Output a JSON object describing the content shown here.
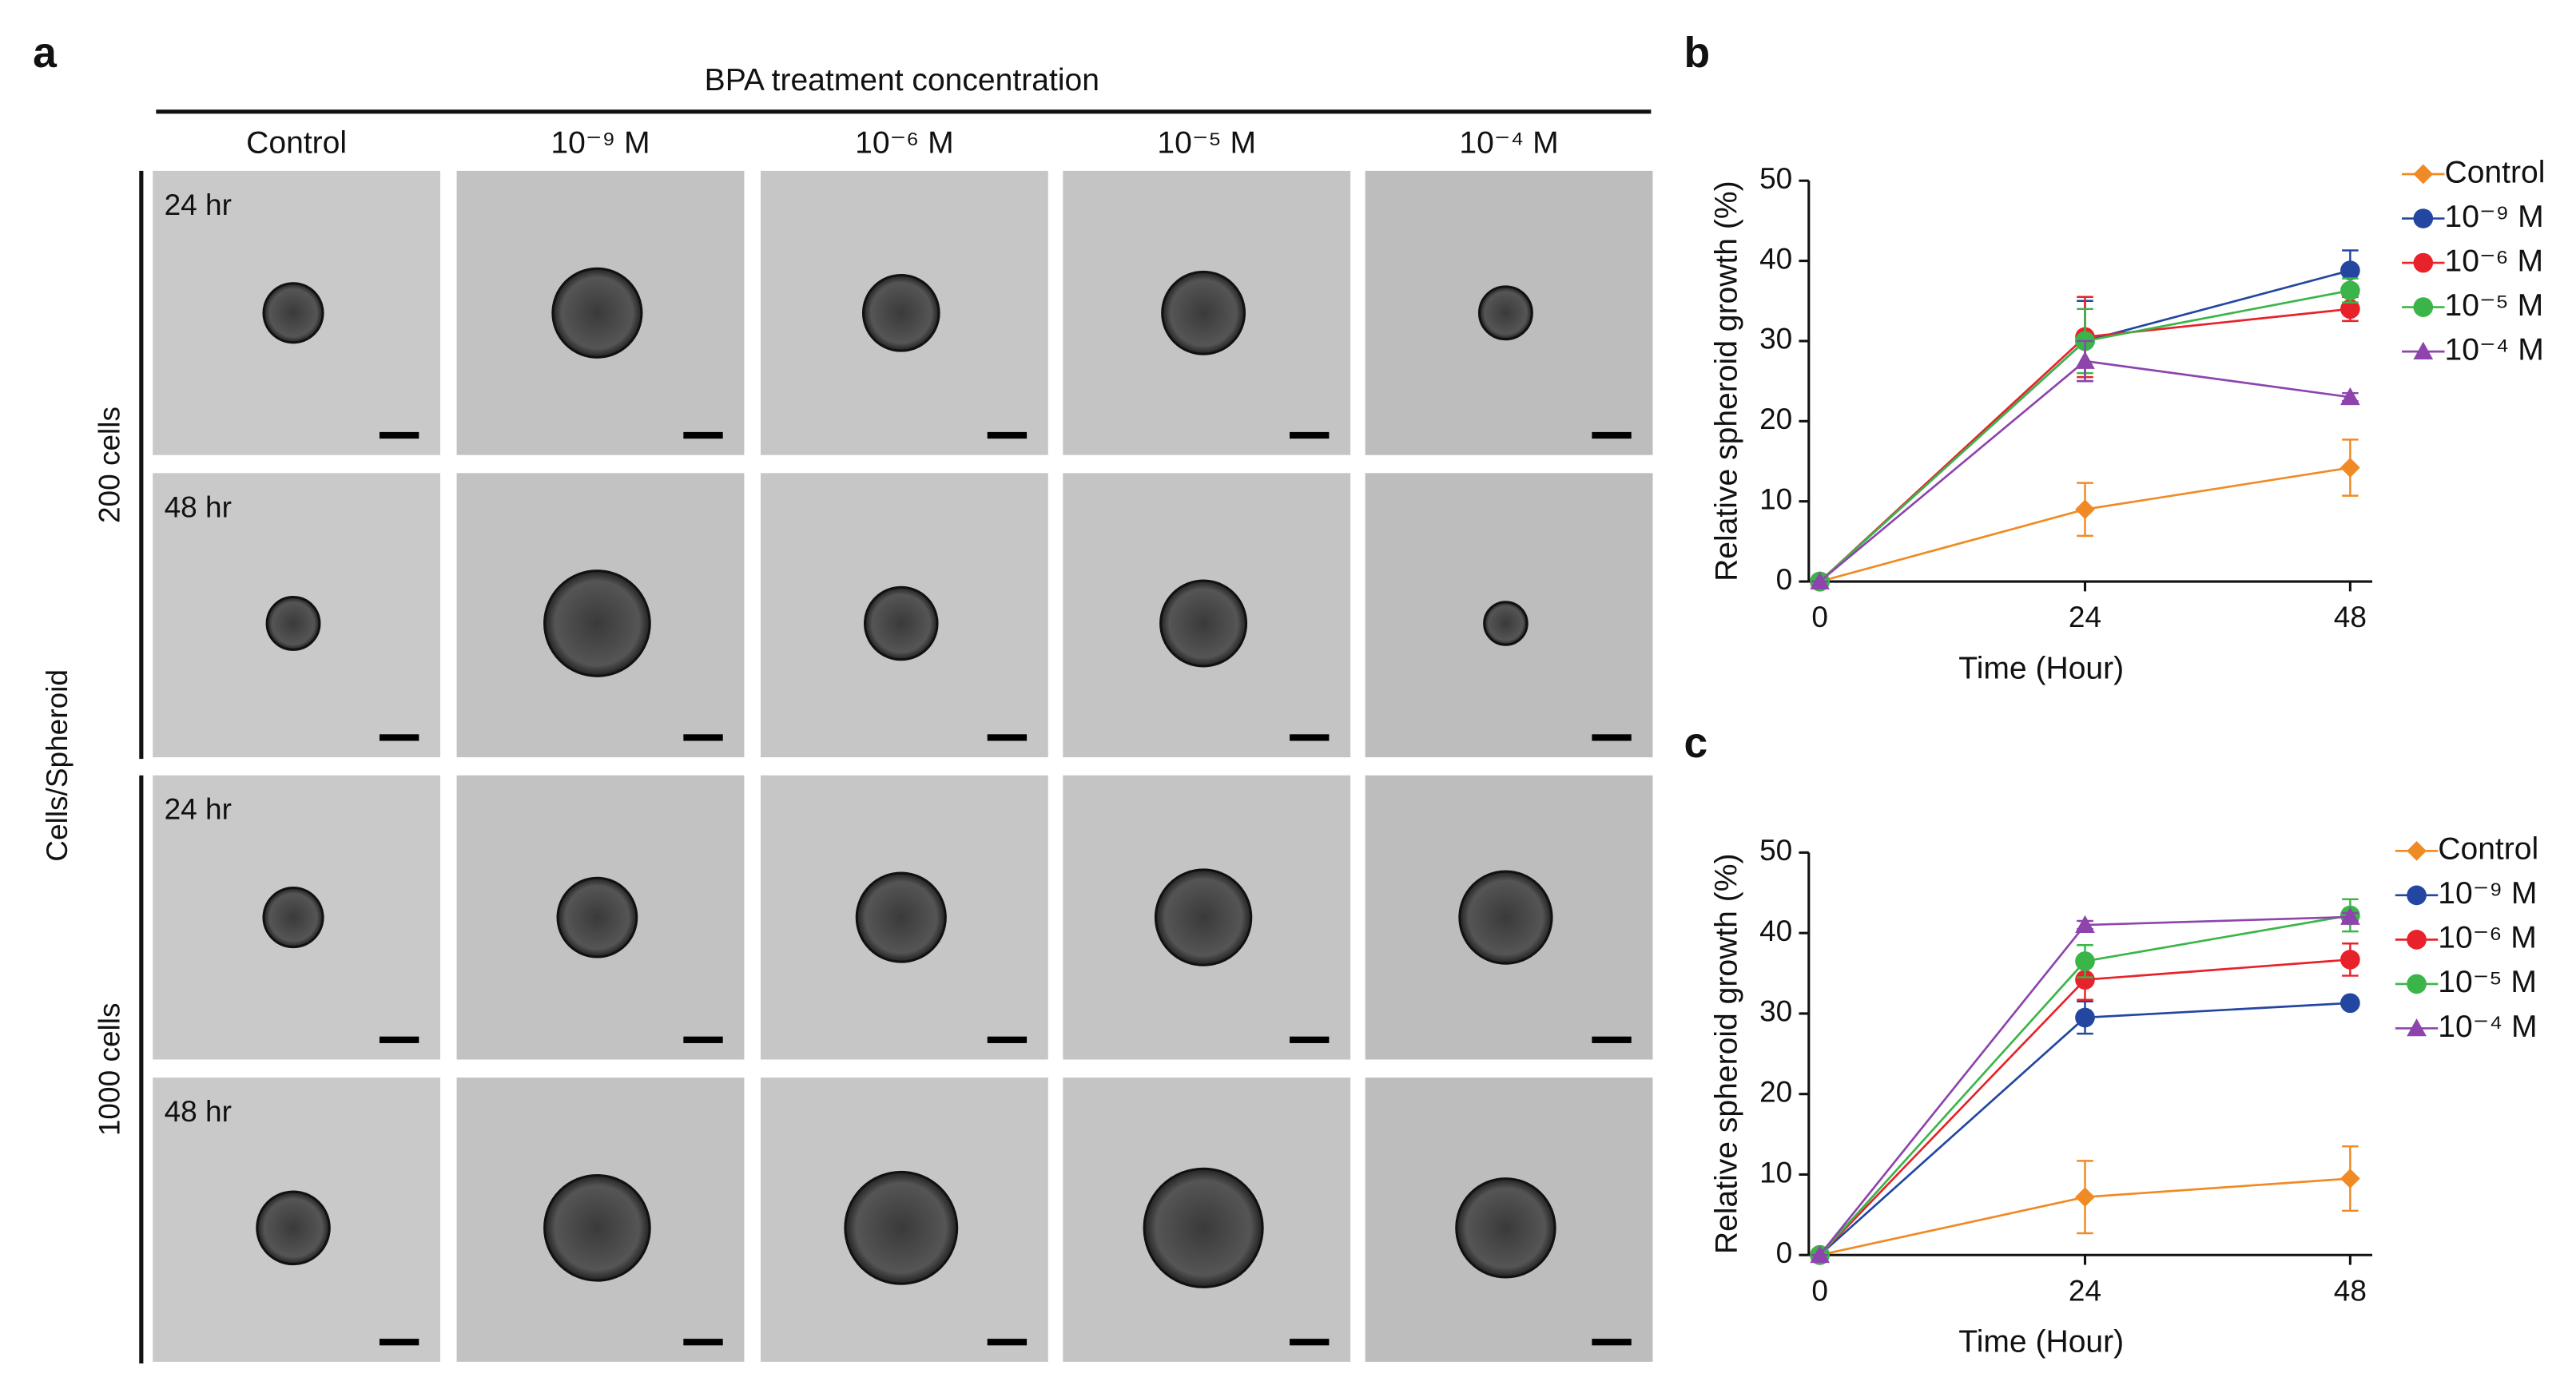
{
  "panel_a": {
    "label": "a",
    "title": "BPA treatment concentration",
    "columns": [
      "Control",
      "10⁻⁹ M",
      "10⁻⁶ M",
      "10⁻⁵ M",
      "10⁻⁴ M"
    ],
    "axis_label": "Cells/Spheroid",
    "groups": [
      "200 cells",
      "1000 cells"
    ],
    "row_labels": [
      "24 hr",
      "48 hr",
      "24 hr",
      "48 hr"
    ]
  },
  "chart_data": [
    {
      "type": "line",
      "label": "b",
      "ylabel": "Relative spheroid growth (%)",
      "xlabel": "Time (Hour)",
      "x": [
        0,
        24,
        48
      ],
      "xlim": [
        -1,
        50
      ],
      "xticks": [
        0,
        24,
        48
      ],
      "ylim": [
        0,
        50
      ],
      "yticks": [
        0,
        10,
        20,
        30,
        40,
        50
      ],
      "series": [
        {
          "name": "Control",
          "color": "#f08a24",
          "marker": "diamond",
          "values": [
            0,
            9,
            14.2
          ],
          "errors": [
            0,
            3.3,
            3.5
          ]
        },
        {
          "name": "10⁻⁹ M",
          "color": "#2346a0",
          "marker": "circle",
          "values": [
            0,
            30,
            38.8
          ],
          "errors": [
            0,
            5,
            2.5
          ]
        },
        {
          "name": "10⁻⁶ M",
          "color": "#e8222a",
          "marker": "circle",
          "values": [
            0,
            30.5,
            34
          ],
          "errors": [
            0,
            5,
            1.5
          ]
        },
        {
          "name": "10⁻⁵ M",
          "color": "#3bb54a",
          "marker": "circle",
          "values": [
            0,
            30,
            36.3
          ],
          "errors": [
            0,
            4,
            1.5
          ]
        },
        {
          "name": "10⁻⁴ M",
          "color": "#8e44ad",
          "marker": "triangle",
          "values": [
            0,
            27.5,
            23
          ],
          "errors": [
            0,
            2.5,
            0.5
          ]
        }
      ]
    },
    {
      "type": "line",
      "label": "c",
      "ylabel": "Relative spheroid growth (%)",
      "xlabel": "Time (Hour)",
      "x": [
        0,
        24,
        48
      ],
      "xlim": [
        -1,
        50
      ],
      "xticks": [
        0,
        24,
        48
      ],
      "ylim": [
        0,
        50
      ],
      "yticks": [
        0,
        10,
        20,
        30,
        40,
        50
      ],
      "series": [
        {
          "name": "Control",
          "color": "#f08a24",
          "marker": "diamond",
          "values": [
            0,
            7.2,
            9.5
          ],
          "errors": [
            0,
            4.5,
            4
          ]
        },
        {
          "name": "10⁻⁹ M",
          "color": "#2346a0",
          "marker": "circle",
          "values": [
            0,
            29.5,
            31.3
          ],
          "errors": [
            0,
            2,
            0.5
          ]
        },
        {
          "name": "10⁻⁶ M",
          "color": "#e8222a",
          "marker": "circle",
          "values": [
            0,
            34.2,
            36.7
          ],
          "errors": [
            0,
            2.5,
            2
          ]
        },
        {
          "name": "10⁻⁵ M",
          "color": "#3bb54a",
          "marker": "circle",
          "values": [
            0,
            36.5,
            42.2
          ],
          "errors": [
            0,
            2,
            2
          ]
        },
        {
          "name": "10⁻⁴ M",
          "color": "#8e44ad",
          "marker": "triangle",
          "values": [
            0,
            41,
            42
          ],
          "errors": [
            0,
            0.5,
            0.5
          ]
        }
      ]
    }
  ]
}
